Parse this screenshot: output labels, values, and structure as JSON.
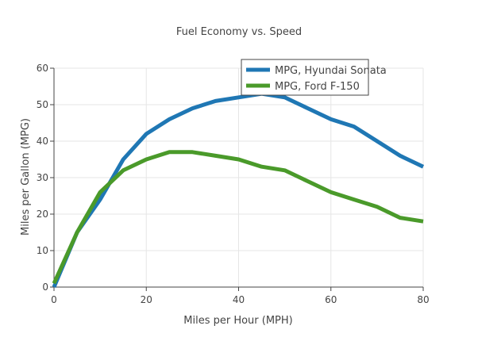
{
  "chart_data": {
    "type": "line",
    "title": "Fuel Economy vs. Speed",
    "xlabel": "Miles per Hour (MPH)",
    "ylabel": "Miles per Gallon (MPG)",
    "xlim": [
      0,
      80
    ],
    "ylim": [
      0,
      60
    ],
    "x_ticks": [
      0,
      20,
      40,
      60,
      80
    ],
    "y_ticks": [
      0,
      10,
      20,
      30,
      40,
      50,
      60
    ],
    "grid": true,
    "legend_position": "top-right",
    "x": [
      0,
      5,
      10,
      15,
      20,
      25,
      30,
      35,
      40,
      45,
      50,
      55,
      60,
      65,
      70,
      75,
      80
    ],
    "series": [
      {
        "name": "MPG, Hyundai Sonata",
        "color": "#1f77b4",
        "values": [
          0,
          15,
          24,
          35,
          42,
          46,
          49,
          51,
          52,
          53,
          52,
          49,
          46,
          44,
          40,
          36,
          33
        ]
      },
      {
        "name": "MPG, Ford F-150",
        "color": "#4a9a2a",
        "values": [
          1,
          15,
          26,
          32,
          35,
          37,
          37,
          36,
          35,
          33,
          32,
          29,
          26,
          24,
          22,
          19,
          18
        ]
      }
    ]
  }
}
